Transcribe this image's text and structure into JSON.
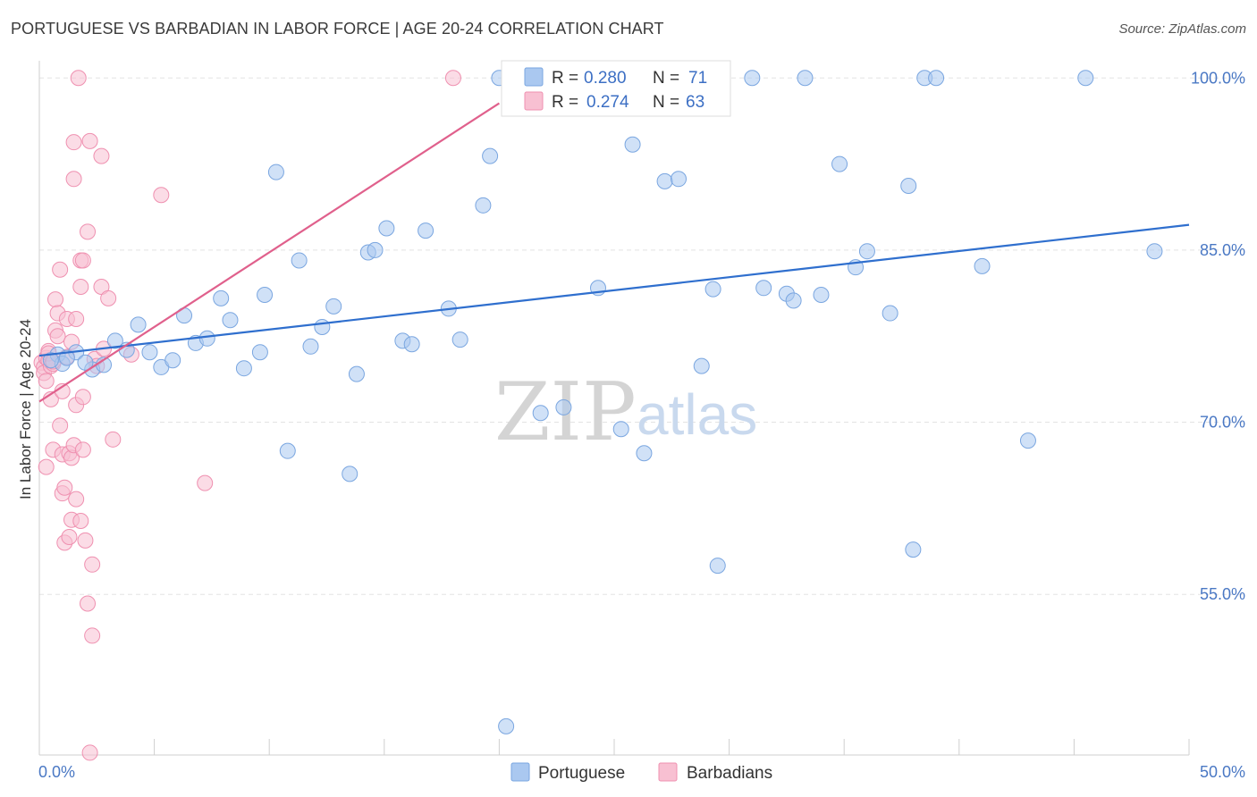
{
  "title": "PORTUGUESE VS BARBADIAN IN LABOR FORCE | AGE 20-24 CORRELATION CHART",
  "source": "Source: ZipAtlas.com",
  "watermark": {
    "zip": "ZIP",
    "atlas": "atlas"
  },
  "colors": {
    "portuguese_fill": "#aac8f0",
    "portuguese_stroke": "#7aa6e0",
    "portuguese_line": "#2f6fce",
    "barbadian_fill": "#f8c0d2",
    "barbadian_stroke": "#ef90b0",
    "barbadian_line": "#e0608c",
    "grid": "#e3e3e3",
    "axis_label": "#4a78c4"
  },
  "legend": {
    "r_label": "R =",
    "n_label": "N =",
    "portuguese": {
      "r": "0.280",
      "n": "71"
    },
    "barbadian": {
      "r": "0.274",
      "n": "63"
    }
  },
  "bottom_legend": [
    "Portuguese",
    "Barbadians"
  ],
  "chart_data": {
    "type": "scatter",
    "title": "PORTUGUESE VS BARBADIAN IN LABOR FORCE | AGE 20-24 CORRELATION CHART",
    "xlabel": "",
    "ylabel": "In Labor Force | Age 20-24",
    "xlim": [
      0,
      50
    ],
    "ylim": [
      41,
      101.5
    ],
    "x_tick_labels": {
      "left": "0.0%",
      "right": "50.0%"
    },
    "y_ticks": [
      {
        "value": 100,
        "label": "100.0%"
      },
      {
        "value": 85,
        "label": "85.0%"
      },
      {
        "value": 70,
        "label": "70.0%"
      },
      {
        "value": 55,
        "label": "55.0%"
      }
    ],
    "series": [
      {
        "name": "Portuguese",
        "r": 0.28,
        "n": 71,
        "trend": {
          "x": [
            0,
            50
          ],
          "y": [
            75.8,
            87.2
          ]
        },
        "points": [
          [
            0.8,
            75.9
          ],
          [
            1.0,
            75.1
          ],
          [
            1.6,
            76.1
          ],
          [
            2.3,
            74.6
          ],
          [
            2.8,
            75.0
          ],
          [
            3.3,
            77.1
          ],
          [
            3.8,
            76.3
          ],
          [
            4.3,
            78.5
          ],
          [
            4.8,
            76.1
          ],
          [
            5.3,
            74.8
          ],
          [
            5.8,
            75.4
          ],
          [
            6.3,
            79.3
          ],
          [
            6.8,
            76.9
          ],
          [
            7.3,
            77.3
          ],
          [
            7.9,
            80.8
          ],
          [
            8.3,
            78.9
          ],
          [
            8.9,
            74.7
          ],
          [
            9.6,
            76.1
          ],
          [
            9.8,
            81.1
          ],
          [
            10.3,
            91.8
          ],
          [
            10.8,
            67.5
          ],
          [
            11.3,
            84.1
          ],
          [
            11.8,
            76.6
          ],
          [
            12.3,
            78.3
          ],
          [
            12.8,
            80.1
          ],
          [
            13.5,
            65.5
          ],
          [
            13.8,
            74.2
          ],
          [
            14.3,
            84.8
          ],
          [
            14.6,
            85.0
          ],
          [
            15.1,
            86.9
          ],
          [
            15.8,
            77.1
          ],
          [
            16.2,
            76.8
          ],
          [
            16.8,
            86.7
          ],
          [
            17.8,
            79.9
          ],
          [
            18.3,
            77.2
          ],
          [
            19.3,
            88.9
          ],
          [
            19.6,
            93.2
          ],
          [
            20.0,
            100.0
          ],
          [
            20.3,
            43.5
          ],
          [
            21.8,
            70.8
          ],
          [
            22.8,
            71.3
          ],
          [
            24.3,
            81.7
          ],
          [
            25.3,
            69.4
          ],
          [
            25.8,
            94.2
          ],
          [
            26.3,
            67.3
          ],
          [
            27.2,
            91.0
          ],
          [
            27.8,
            91.2
          ],
          [
            28.8,
            74.9
          ],
          [
            29.3,
            81.6
          ],
          [
            29.5,
            57.5
          ],
          [
            31.0,
            100.0
          ],
          [
            31.5,
            81.7
          ],
          [
            32.5,
            81.2
          ],
          [
            32.8,
            80.6
          ],
          [
            33.3,
            100.0
          ],
          [
            34.0,
            81.1
          ],
          [
            34.8,
            92.5
          ],
          [
            35.5,
            83.5
          ],
          [
            36.0,
            84.9
          ],
          [
            37.0,
            79.5
          ],
          [
            37.8,
            90.6
          ],
          [
            38.0,
            58.9
          ],
          [
            38.5,
            100.0
          ],
          [
            39.0,
            100.0
          ],
          [
            41.0,
            83.6
          ],
          [
            43.0,
            68.4
          ],
          [
            45.5,
            100.0
          ],
          [
            48.5,
            84.9
          ],
          [
            1.2,
            75.6
          ],
          [
            0.5,
            75.4
          ],
          [
            2.0,
            75.2
          ]
        ]
      },
      {
        "name": "Barbadians",
        "r": 0.274,
        "n": 63,
        "trend": {
          "x": [
            0,
            20
          ],
          "y": [
            71.8,
            97.8
          ]
        },
        "points": [
          [
            0.1,
            75.2
          ],
          [
            0.2,
            74.8
          ],
          [
            0.2,
            74.3
          ],
          [
            0.3,
            75.6
          ],
          [
            0.3,
            73.6
          ],
          [
            0.4,
            75.4
          ],
          [
            0.4,
            76.2
          ],
          [
            0.5,
            74.9
          ],
          [
            0.5,
            72.0
          ],
          [
            0.6,
            75.1
          ],
          [
            0.6,
            67.6
          ],
          [
            0.7,
            80.7
          ],
          [
            0.7,
            78.0
          ],
          [
            0.8,
            77.5
          ],
          [
            0.8,
            79.5
          ],
          [
            0.9,
            83.3
          ],
          [
            0.9,
            69.7
          ],
          [
            1.0,
            72.7
          ],
          [
            1.0,
            63.8
          ],
          [
            1.0,
            67.2
          ],
          [
            1.1,
            64.3
          ],
          [
            1.1,
            59.5
          ],
          [
            1.2,
            75.7
          ],
          [
            1.2,
            79.0
          ],
          [
            1.3,
            67.3
          ],
          [
            1.3,
            60.0
          ],
          [
            1.4,
            66.9
          ],
          [
            1.4,
            61.5
          ],
          [
            1.4,
            77.0
          ],
          [
            1.5,
            91.2
          ],
          [
            1.5,
            94.4
          ],
          [
            1.6,
            79.0
          ],
          [
            1.6,
            71.5
          ],
          [
            1.6,
            63.3
          ],
          [
            1.7,
            100.0
          ],
          [
            1.8,
            84.1
          ],
          [
            1.8,
            81.8
          ],
          [
            1.8,
            61.4
          ],
          [
            1.9,
            72.2
          ],
          [
            1.9,
            84.1
          ],
          [
            2.0,
            59.7
          ],
          [
            2.1,
            86.6
          ],
          [
            2.1,
            54.2
          ],
          [
            2.2,
            41.2
          ],
          [
            2.2,
            94.5
          ],
          [
            2.3,
            51.4
          ],
          [
            2.3,
            57.6
          ],
          [
            2.4,
            75.5
          ],
          [
            2.5,
            74.9
          ],
          [
            2.7,
            93.2
          ],
          [
            2.7,
            81.8
          ],
          [
            2.8,
            76.4
          ],
          [
            3.0,
            80.8
          ],
          [
            3.2,
            68.5
          ],
          [
            4.0,
            75.9
          ],
          [
            5.3,
            89.8
          ],
          [
            7.2,
            64.7
          ],
          [
            18.0,
            100.0
          ],
          [
            0.3,
            66.1
          ],
          [
            0.4,
            76.0
          ],
          [
            0.6,
            75.3
          ],
          [
            1.5,
            68.0
          ],
          [
            1.9,
            67.6
          ]
        ]
      }
    ]
  }
}
